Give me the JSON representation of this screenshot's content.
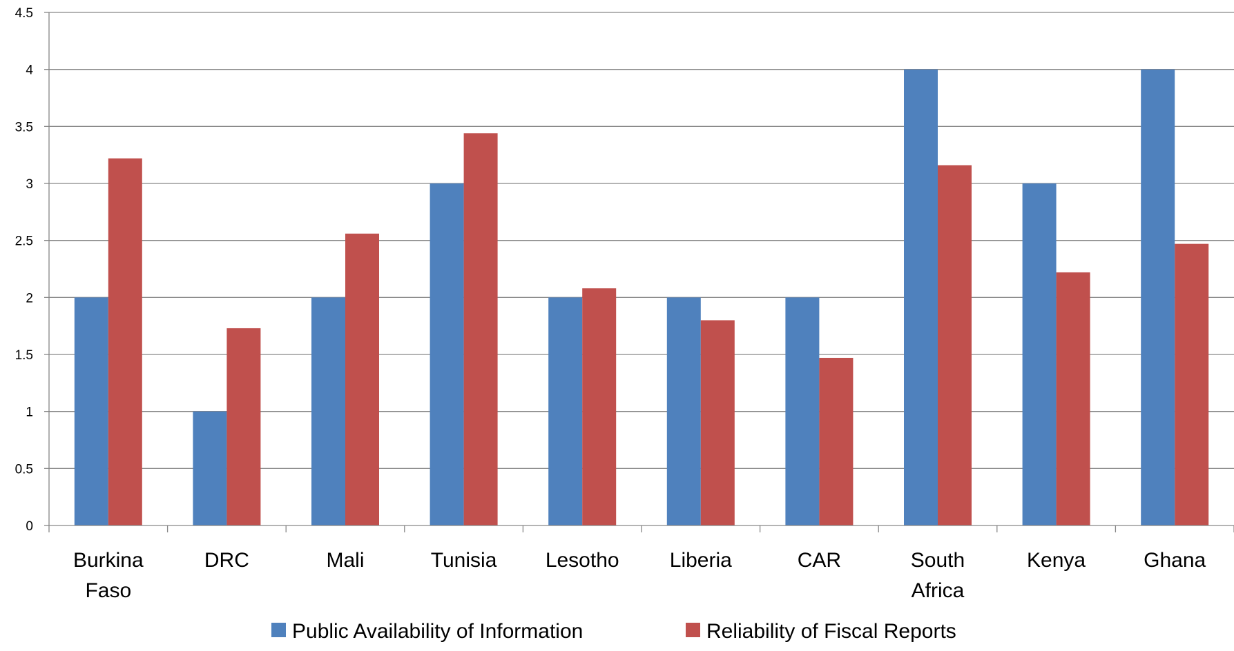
{
  "chart_data": {
    "type": "bar",
    "title": "",
    "xlabel": "",
    "ylabel": "",
    "ylim": [
      0,
      4.5
    ],
    "yticks": [
      "0",
      "0.5",
      "1",
      "1.5",
      "2",
      "2.5",
      "3",
      "3.5",
      "4",
      "4.5"
    ],
    "grid": true,
    "legend_position": "bottom",
    "categories": [
      [
        "Burkina",
        "Faso"
      ],
      [
        "DRC"
      ],
      [
        "Mali"
      ],
      [
        "Tunisia"
      ],
      [
        "Lesotho"
      ],
      [
        "Liberia"
      ],
      [
        "CAR"
      ],
      [
        "South",
        "Africa"
      ],
      [
        "Kenya"
      ],
      [
        "Ghana"
      ]
    ],
    "series": [
      {
        "name": "Public Availability of Information",
        "color": "#4F81BD",
        "values": [
          2,
          1,
          2,
          3,
          2,
          2,
          2,
          4,
          3,
          4
        ]
      },
      {
        "name": "Reliability of Fiscal Reports",
        "color": "#C0504D",
        "values": [
          3.22,
          1.73,
          2.56,
          3.44,
          2.08,
          1.8,
          1.47,
          3.16,
          2.22,
          2.47
        ]
      }
    ]
  }
}
